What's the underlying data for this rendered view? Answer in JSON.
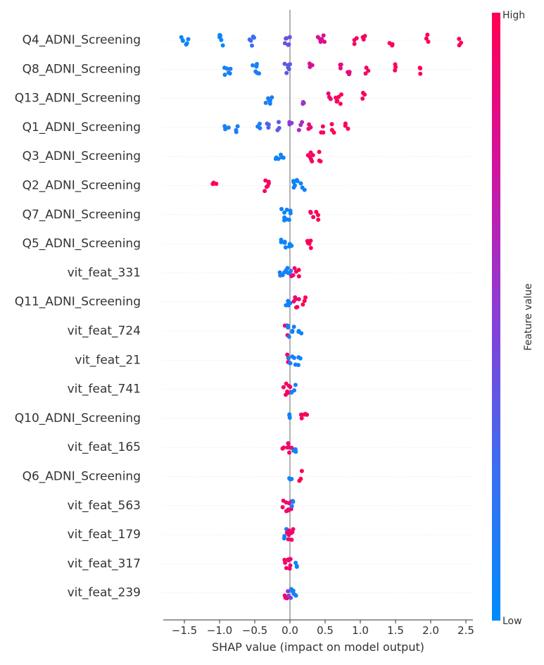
{
  "chart_data": {
    "type": "scatter",
    "subtype": "shap-beeswarm-summary",
    "xlabel": "SHAP value (impact on model output)",
    "xlim": [
      -1.8,
      2.6
    ],
    "xticks": [
      -1.5,
      -1.0,
      -0.5,
      0.0,
      0.5,
      1.0,
      1.5,
      2.0,
      2.5
    ],
    "xtick_labels": [
      "−1.5",
      "−1.0",
      "−0.5",
      "0.0",
      "0.5",
      "1.0",
      "1.5",
      "2.0",
      "2.5"
    ],
    "colorbar": {
      "title": "Feature value",
      "high_label": "High",
      "low_label": "Low",
      "low_color": "#008afb",
      "high_color": "#ff0052"
    },
    "zero_line_color": "#999999",
    "features": [
      {
        "name": "Q4_ADNI_Screening",
        "points": [
          [
            -1.52,
            0.05
          ],
          [
            -1.45,
            0.05
          ],
          [
            -1.0,
            0.05
          ],
          [
            -0.98,
            0.05
          ],
          [
            -0.55,
            0.25
          ],
          [
            -0.52,
            0.25
          ],
          [
            -0.05,
            0.4
          ],
          [
            0.0,
            0.4
          ],
          [
            0.42,
            0.8
          ],
          [
            0.48,
            0.8
          ],
          [
            0.92,
            0.95
          ],
          [
            1.05,
            0.95
          ],
          [
            1.43,
            1.0
          ],
          [
            1.95,
            1.0
          ],
          [
            2.42,
            1.0
          ]
        ]
      },
      {
        "name": "Q8_ADNI_Screening",
        "points": [
          [
            -0.9,
            0.1
          ],
          [
            -0.85,
            0.1
          ],
          [
            -0.5,
            0.1
          ],
          [
            -0.45,
            0.1
          ],
          [
            -0.05,
            0.35
          ],
          [
            0.0,
            0.35
          ],
          [
            0.3,
            0.8
          ],
          [
            0.72,
            0.85
          ],
          [
            0.85,
            0.85
          ],
          [
            1.1,
            0.95
          ],
          [
            1.52,
            1.0
          ],
          [
            1.85,
            1.0
          ]
        ]
      },
      {
        "name": "Q13_ADNI_Screening",
        "points": [
          [
            -0.32,
            0.1
          ],
          [
            -0.28,
            0.1
          ],
          [
            0.18,
            0.55
          ],
          [
            0.55,
            0.9
          ],
          [
            0.65,
            0.95
          ],
          [
            0.72,
            1.0
          ],
          [
            1.05,
            1.0
          ]
        ]
      },
      {
        "name": "Q1_ADNI_Screening",
        "points": [
          [
            -0.9,
            0.1
          ],
          [
            -0.75,
            0.1
          ],
          [
            -0.45,
            0.1
          ],
          [
            -0.3,
            0.3
          ],
          [
            -0.15,
            0.35
          ],
          [
            0.0,
            0.5
          ],
          [
            0.15,
            0.6
          ],
          [
            0.28,
            0.9
          ],
          [
            0.45,
            0.95
          ],
          [
            0.62,
            1.0
          ],
          [
            0.8,
            1.0
          ]
        ]
      },
      {
        "name": "Q3_ADNI_Screening",
        "points": [
          [
            -0.18,
            0.05
          ],
          [
            -0.12,
            0.05
          ],
          [
            0.28,
            0.95
          ],
          [
            0.32,
            0.95
          ],
          [
            0.42,
            1.0
          ]
        ]
      },
      {
        "name": "Q2_ADNI_Screening",
        "points": [
          [
            -1.07,
            1.0
          ],
          [
            -0.35,
            0.95
          ],
          [
            -0.3,
            0.95
          ],
          [
            0.05,
            0.05
          ],
          [
            0.1,
            0.05
          ],
          [
            0.18,
            0.05
          ]
        ]
      },
      {
        "name": "Q7_ADNI_Screening",
        "points": [
          [
            -0.1,
            0.05
          ],
          [
            -0.05,
            0.05
          ],
          [
            0.0,
            0.05
          ],
          [
            0.32,
            0.95
          ],
          [
            0.4,
            1.0
          ]
        ]
      },
      {
        "name": "Q5_ADNI_Screening",
        "points": [
          [
            -0.1,
            0.05
          ],
          [
            -0.05,
            0.05
          ],
          [
            0.0,
            0.05
          ],
          [
            0.25,
            0.95
          ],
          [
            0.3,
            1.0
          ]
        ]
      },
      {
        "name": "vit_feat_331",
        "points": [
          [
            -0.12,
            0.1
          ],
          [
            -0.05,
            0.1
          ],
          [
            0.0,
            0.1
          ],
          [
            0.05,
            0.9
          ],
          [
            0.1,
            1.0
          ]
        ]
      },
      {
        "name": "Q11_ADNI_Screening",
        "points": [
          [
            -0.05,
            0.05
          ],
          [
            0.0,
            0.05
          ],
          [
            0.08,
            0.9
          ],
          [
            0.12,
            0.95
          ],
          [
            0.2,
            1.0
          ]
        ]
      },
      {
        "name": "vit_feat_724",
        "points": [
          [
            -0.05,
            0.9
          ],
          [
            0.0,
            0.1
          ],
          [
            0.05,
            0.1
          ],
          [
            0.15,
            0.05
          ]
        ]
      },
      {
        "name": "vit_feat_21",
        "points": [
          [
            -0.05,
            0.9
          ],
          [
            0.0,
            0.1
          ],
          [
            0.05,
            0.1
          ],
          [
            0.13,
            0.05
          ]
        ]
      },
      {
        "name": "vit_feat_741",
        "points": [
          [
            -0.08,
            0.95
          ],
          [
            -0.03,
            0.95
          ],
          [
            0.0,
            0.9
          ],
          [
            0.05,
            0.1
          ]
        ]
      },
      {
        "name": "Q10_ADNI_Screening",
        "points": [
          [
            0.0,
            0.05
          ],
          [
            0.18,
            0.95
          ],
          [
            0.23,
            1.0
          ]
        ]
      },
      {
        "name": "vit_feat_165",
        "points": [
          [
            -0.08,
            0.95
          ],
          [
            -0.03,
            0.95
          ],
          [
            0.0,
            0.9
          ],
          [
            0.07,
            0.1
          ]
        ]
      },
      {
        "name": "Q6_ADNI_Screening",
        "points": [
          [
            0.0,
            0.05
          ],
          [
            0.14,
            1.0
          ]
        ]
      },
      {
        "name": "vit_feat_563",
        "points": [
          [
            -0.08,
            0.95
          ],
          [
            -0.03,
            0.9
          ],
          [
            0.0,
            0.9
          ],
          [
            0.03,
            0.1
          ]
        ]
      },
      {
        "name": "vit_feat_179",
        "points": [
          [
            -0.06,
            0.05
          ],
          [
            -0.02,
            0.9
          ],
          [
            0.0,
            0.9
          ],
          [
            0.04,
            0.95
          ]
        ]
      },
      {
        "name": "vit_feat_317",
        "points": [
          [
            -0.06,
            0.95
          ],
          [
            -0.02,
            0.9
          ],
          [
            0.0,
            0.9
          ],
          [
            0.08,
            0.05
          ]
        ]
      },
      {
        "name": "vit_feat_239",
        "points": [
          [
            -0.05,
            0.9
          ],
          [
            0.0,
            0.5
          ],
          [
            0.03,
            0.1
          ],
          [
            0.07,
            0.05
          ]
        ]
      }
    ]
  }
}
